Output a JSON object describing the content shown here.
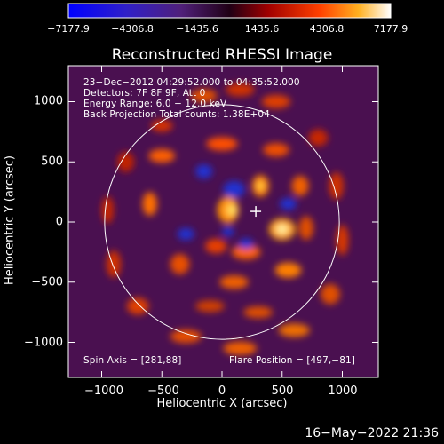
{
  "colorbar": {
    "ticks": [
      "−7177.9",
      "−4306.8",
      "−1435.6",
      "1435.6",
      "4306.8",
      "7177.9"
    ]
  },
  "chart_data": {
    "type": "heatmap",
    "title": "Reconstructed RHESSI Image",
    "xlabel": "Heliocentric X (arcsec)",
    "ylabel": "Heliocentric Y (arcsec)",
    "xlim": [
      -1300,
      1300
    ],
    "ylim": [
      -1300,
      1300
    ],
    "xticks": [
      "−1000",
      "−500",
      "0",
      "500",
      "1000"
    ],
    "yticks": [
      "1000",
      "500",
      "0",
      "−500",
      "−1000"
    ],
    "value_range": [
      -7177.9,
      7177.9
    ],
    "info_lines": [
      "23−Dec−2012 04:29:52.000 to 04:35:52.000",
      "Detectors: 7F 8F 9F, Att 0",
      "Energy Range: 6.0 − 12.0 keV",
      "Back Projection    Total counts: 1.38E+04"
    ],
    "spin_axis_label": "Spin Axis = [281,88]",
    "flare_position_label": "Flare Position = [497,−81]",
    "solar_disk_radius": 975,
    "cross_marker": [
      281,
      88
    ]
  },
  "timestamp": "16−May−2022 21:36"
}
